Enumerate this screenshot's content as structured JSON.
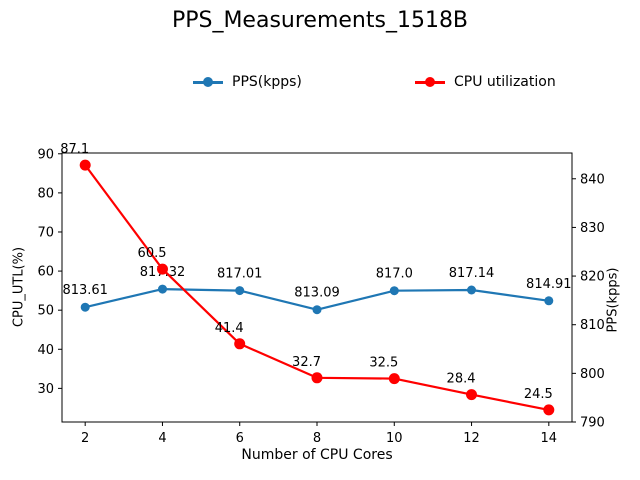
{
  "chart_data": {
    "type": "line",
    "title": "PPS_Measurements_1518B",
    "xlabel": "Number of CPU Cores",
    "ylabel_left": "CPU_UTL(%)",
    "ylabel_right": "PPS(kpps)",
    "x": [
      2,
      4,
      6,
      8,
      10,
      12,
      14
    ],
    "series": [
      {
        "name": "PPS(kpps)",
        "axis": "right",
        "color": "#1f77b4",
        "values": [
          813.61,
          817.32,
          817.01,
          813.09,
          817.0,
          817.14,
          814.91
        ],
        "point_labels": [
          "813.61",
          "817.32",
          "817.01",
          "813.09",
          "817.0",
          "817.14",
          "814.91"
        ],
        "label_align": "center"
      },
      {
        "name": "CPU utilization",
        "axis": "left",
        "color": "#ff0000",
        "values": [
          87.1,
          60.5,
          41.4,
          32.7,
          32.5,
          28.4,
          24.5
        ],
        "point_labels": [
          "87.1",
          "60.5",
          "41.4",
          "32.7",
          "32.5",
          "28.4",
          "24.5"
        ],
        "label_align": "right"
      }
    ],
    "xlim": [
      1.4,
      14.6
    ],
    "ylim_left": [
      21.4,
      90.2
    ],
    "ylim_right": [
      790,
      845.3
    ],
    "xticks": [
      2,
      4,
      6,
      8,
      10,
      12,
      14
    ],
    "yticks_left": [
      30,
      40,
      50,
      60,
      70,
      80,
      90
    ],
    "yticks_right": [
      790,
      800,
      810,
      820,
      830,
      840
    ],
    "grid": false,
    "legend_position": "top-center",
    "background_color": "#ffffff",
    "text_color": "#000000"
  }
}
